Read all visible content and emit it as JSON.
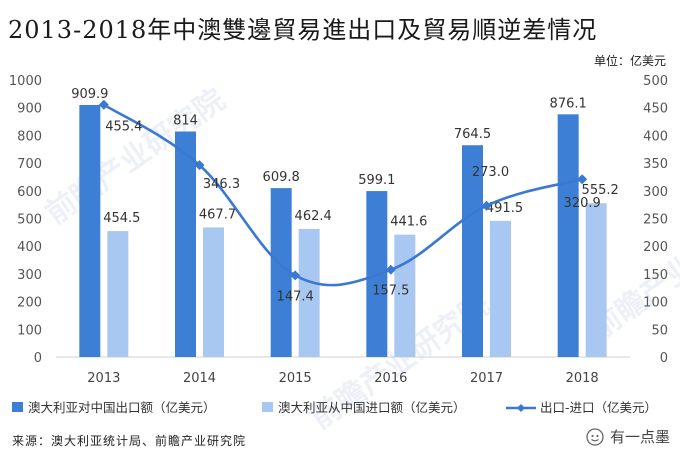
{
  "page": {
    "title": "2013-2018年中澳雙邊貿易進出口及貿易順逆差情况",
    "unit": "单位：亿美元",
    "source": "来源：澳大利亚统计局、前瞻产业研究院",
    "brand": "有一点墨",
    "watermark": "前瞻产业研究院"
  },
  "colors": {
    "export": "#3e7fd6",
    "import": "#a8c8f2",
    "balance": "#3a78d4"
  },
  "chart_data": {
    "type": "bar",
    "categories": [
      "2013",
      "2014",
      "2015",
      "2016",
      "2017",
      "2018"
    ],
    "series": [
      {
        "name": "澳大利亚对中国出口额（亿美元）",
        "type": "bar",
        "axis": "left",
        "values": [
          909.9,
          814,
          609.8,
          599.1,
          764.5,
          876.1
        ],
        "labels": [
          "909.9",
          "814",
          "609.8",
          "599.1",
          "764.5",
          "876.1"
        ]
      },
      {
        "name": "澳大利亚从中国进口额（亿美元）",
        "type": "bar",
        "axis": "left",
        "values": [
          454.5,
          467.7,
          462.4,
          441.6,
          491.5,
          555.2
        ],
        "labels": [
          "454.5",
          "467.7",
          "462.4",
          "441.6",
          "491.5",
          "555.2"
        ]
      },
      {
        "name": "出口-进口（亿美元）",
        "type": "line",
        "axis": "right",
        "values": [
          455.4,
          346.3,
          147.4,
          157.5,
          273.0,
          320.9
        ],
        "labels": [
          "455.4",
          "346.3",
          "147.4",
          "157.5",
          "273.0",
          "320.9"
        ]
      }
    ],
    "y_left": {
      "min": 0,
      "max": 1000,
      "ticks": [
        "0",
        "100",
        "200",
        "300",
        "400",
        "500",
        "600",
        "700",
        "800",
        "900",
        "1000"
      ]
    },
    "y_right": {
      "min": 0,
      "max": 500,
      "ticks": [
        "0",
        "50",
        "100",
        "150",
        "200",
        "250",
        "300",
        "350",
        "400",
        "450",
        "500"
      ]
    },
    "grid": false,
    "legend_position": "bottom"
  }
}
